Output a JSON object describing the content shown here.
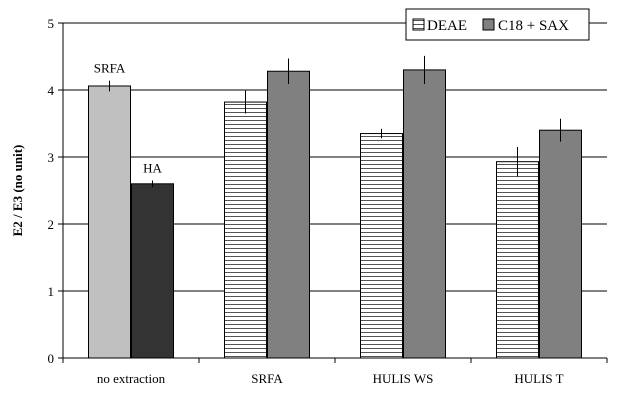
{
  "chart_data": {
    "type": "bar",
    "title": "",
    "xlabel": "",
    "ylabel": "E2 / E3 (no unit)",
    "ylim": [
      0,
      5
    ],
    "yticks": [
      0,
      1,
      2,
      3,
      4,
      5
    ],
    "grid": true,
    "legend_position": "top-right",
    "categories": [
      "no extraction",
      "SRFA",
      "HULIS WS",
      "HULIS T"
    ],
    "series": [
      {
        "name": "DEAE",
        "pattern": "horizontal-stripes",
        "color": "#ffffff",
        "values": [
          null,
          3.82,
          3.35,
          2.93
        ],
        "errors": [
          null,
          0.17,
          0.07,
          0.22
        ]
      },
      {
        "name": "C18 + SAX",
        "pattern": "solid",
        "color": "#808080",
        "values": [
          null,
          4.28,
          4.3,
          3.4
        ],
        "errors": [
          null,
          0.19,
          0.21,
          0.17
        ]
      }
    ],
    "reference_bars": [
      {
        "label": "SRFA",
        "color": "#c0c0c0",
        "value": 4.06,
        "error": 0.08
      },
      {
        "label": "HA",
        "color": "#333333",
        "value": 2.6,
        "error": 0.05
      }
    ]
  }
}
